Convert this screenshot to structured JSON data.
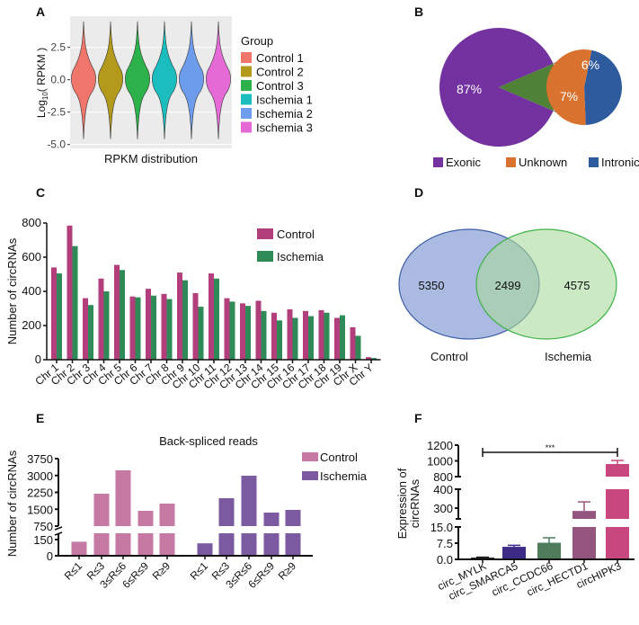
{
  "panel_labels": {
    "A": "A",
    "B": "B",
    "C": "C",
    "D": "D",
    "E": "E",
    "F": "F"
  },
  "chart_data": [
    {
      "id": "A",
      "type": "violin",
      "title": "",
      "xlabel": "RPKM distribution",
      "ylabel_prefix": "Log",
      "ylabel_sub": "10",
      "ylabel_suffix": "( RPKM )",
      "ylim": [
        -5.3,
        4.9
      ],
      "yticks": [
        2.5,
        0.0,
        -2.5,
        -5.0
      ],
      "ytick_labels": [
        "2.5",
        "0.0",
        "-2.5",
        "-5.0"
      ],
      "legend_title": "Group",
      "groups": [
        {
          "name": "Control 1",
          "color": "#F0756A"
        },
        {
          "name": "Control 2",
          "color": "#B39A1C"
        },
        {
          "name": "Control 3",
          "color": "#2DB24B"
        },
        {
          "name": "Ischemia 1",
          "color": "#1CBDBF"
        },
        {
          "name": "Ischemia 2",
          "color": "#6C9CEB"
        },
        {
          "name": "Ischemia 3",
          "color": "#E56AD6"
        }
      ]
    },
    {
      "id": "B",
      "type": "pie",
      "slices": [
        {
          "label": "Exonic",
          "value": 87,
          "text": "87%",
          "color": "#7332A0"
        },
        {
          "label": "Unknown",
          "value": 7,
          "text": "7%",
          "color": "#D8722E"
        },
        {
          "label": "Intronic",
          "value": 6,
          "text": "6%",
          "color": "#2E5A9E"
        }
      ],
      "exploded_wedge_color": "#4F8236",
      "legend": [
        "Exonic",
        "Unknown",
        "Intronic"
      ]
    },
    {
      "id": "C",
      "type": "bar",
      "ylabel": "Number of circRNAs",
      "ylim": [
        0,
        800
      ],
      "yticks": [
        0,
        200,
        400,
        600,
        800
      ],
      "ytick_labels": [
        "0",
        "200",
        "400",
        "600",
        "800"
      ],
      "categories": [
        "Chr 1",
        "Chr 2",
        "Chr 3",
        "Chr 4",
        "Chr 5",
        "Chr 6",
        "Chr 7",
        "Chr 8",
        "Chr 9",
        "Chr 10",
        "Chr 11",
        "Chr 12",
        "Chr 13",
        "Chr 14",
        "Chr 15",
        "Chr 16",
        "Chr 17",
        "Chr 18",
        "Chr 19",
        "Chr X",
        "Chr Y"
      ],
      "series": [
        {
          "name": "Control",
          "color": "#B23E7C",
          "values": [
            540,
            785,
            360,
            475,
            555,
            370,
            415,
            385,
            510,
            390,
            505,
            360,
            330,
            345,
            275,
            295,
            285,
            290,
            245,
            190,
            15
          ]
        },
        {
          "name": "Ischemia",
          "color": "#2E8B57",
          "values": [
            505,
            665,
            320,
            400,
            525,
            365,
            375,
            355,
            465,
            310,
            475,
            340,
            315,
            285,
            230,
            245,
            255,
            275,
            260,
            140,
            10
          ]
        }
      ],
      "legend_placement": "top-right"
    },
    {
      "id": "D",
      "type": "venn",
      "sets": [
        {
          "name": "Control",
          "only": "5350",
          "color": "#8FA3D6"
        },
        {
          "name": "Ischemia",
          "only": "4575",
          "color": "#A9DB9A"
        }
      ],
      "overlap": "2499"
    },
    {
      "id": "E",
      "type": "bar",
      "title": "Back-spliced reads",
      "ylabel": "Number of circRNAs",
      "y_segments": [
        [
          0,
          208
        ],
        [
          750,
          3750
        ]
      ],
      "yticks": [
        0,
        150,
        750,
        1500,
        2250,
        3000,
        3750
      ],
      "ytick_labels": [
        "0",
        "150",
        "750",
        "1500",
        "2250",
        "3000",
        "3750"
      ],
      "categories": [
        "R≤1",
        "R≤3",
        "3≤R≤6",
        "6≤R≤9",
        "R≥9"
      ],
      "series": [
        {
          "name": "Control",
          "color": "#C67AA3",
          "values": [
            130,
            2190,
            3230,
            1430,
            1750
          ]
        },
        {
          "name": "Ischemia",
          "color": "#7C5AA2",
          "values": [
            115,
            1990,
            2990,
            1350,
            1470
          ]
        }
      ],
      "legend_placement": "top-right"
    },
    {
      "id": "F",
      "type": "bar",
      "ylabel_line1": "Expression of",
      "ylabel_line2": "circRNAs",
      "y_segments": [
        [
          0,
          15
        ],
        [
          243,
          400
        ],
        [
          800,
          1200
        ]
      ],
      "yticks": [
        0,
        7.5,
        15,
        300,
        400,
        800,
        1000,
        1200
      ],
      "ytick_labels": [
        "0.0",
        "7.5",
        "15.0",
        "300",
        "400",
        "800",
        "1000",
        "1200"
      ],
      "categories": [
        "circ_MYLK",
        "circ_SMARCA5",
        "circ_CCDC66",
        "circ_HECTD1",
        "circHIPK3"
      ],
      "values": [
        0.8,
        5.8,
        7.7,
        285,
        960
      ],
      "errors_upper": [
        1.0,
        6.5,
        10.0,
        333,
        1005
      ],
      "colors": [
        "#1A1A1A",
        "#3B2A86",
        "#4F7C5A",
        "#94567E",
        "#C9477F"
      ],
      "significance": "***"
    }
  ]
}
